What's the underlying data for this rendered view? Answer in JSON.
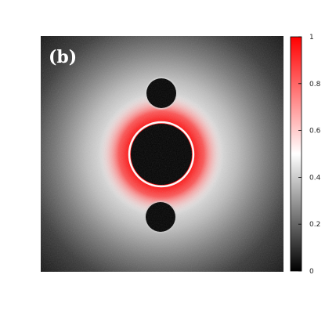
{
  "panel_label": "(b)",
  "chart_data": {
    "type": "heatmap",
    "title": "",
    "xlabel": "",
    "ylabel": "",
    "colorbar": {
      "range": [
        0,
        1
      ],
      "ticks": [
        "0",
        "0.2",
        "0.4",
        "0.6",
        "0.8",
        "1"
      ],
      "tick_values": [
        0,
        0.2,
        0.4,
        0.6,
        0.8,
        1
      ],
      "colors": {
        "low": "#000000",
        "mid": "#ffffff",
        "high": "#ff0000"
      }
    },
    "background_level": 0.15,
    "features": [
      {
        "name": "central-obstacle",
        "kind": "dark-disk",
        "value": 0
      },
      {
        "name": "top-obstacle",
        "kind": "dark-disk",
        "value": 0
      },
      {
        "name": "bottom-obstacle",
        "kind": "dark-disk",
        "value": 0
      },
      {
        "name": "ring",
        "kind": "high-density-annulus",
        "peak_value": 1
      }
    ]
  }
}
